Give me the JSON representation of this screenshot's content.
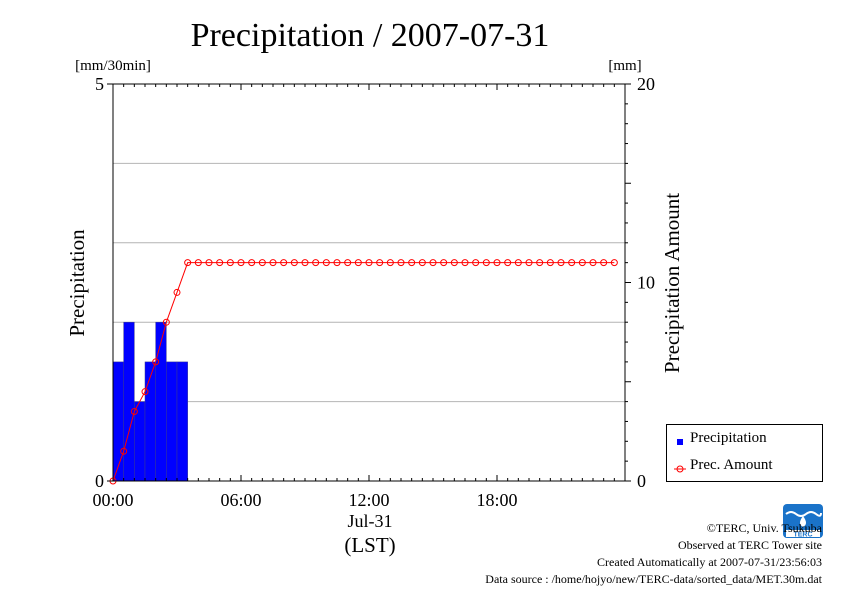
{
  "chart_data": {
    "type": "bar+line",
    "title": "Precipitation / 2007-07-31",
    "left_unit": "[mm/30min]",
    "right_unit": "[mm]",
    "ylabel_left": "Precipitation",
    "ylabel_right": "Precipitation Amount",
    "ylim_left": [
      0,
      5
    ],
    "ylim_right": [
      0,
      20
    ],
    "left_ticks": [
      "0",
      "5"
    ],
    "right_ticks": [
      "0",
      "10",
      "20"
    ],
    "x_ticks": [
      "00:00",
      "06:00",
      "12:00",
      "18:00"
    ],
    "x_date_label": "Jul-31",
    "x_unit_label": "(LST)",
    "grid": true,
    "legend_position": "lower-right-outside",
    "series": [
      {
        "name": "Precipitation",
        "kind": "bar",
        "color": "#0000ff",
        "start_time": "00:00",
        "interval_min": 30,
        "values": [
          1.5,
          2.0,
          1.0,
          1.5,
          2.0,
          1.5,
          1.5
        ]
      },
      {
        "name": "Prec. Amount",
        "kind": "line",
        "color": "#ff0000",
        "times": [
          "00:00",
          "00:30",
          "01:00",
          "01:30",
          "02:00",
          "02:30",
          "03:00",
          "03:30",
          "04:00",
          "04:30",
          "05:00",
          "05:30",
          "06:00",
          "06:30",
          "07:00",
          "07:30",
          "08:00",
          "08:30",
          "09:00",
          "09:30",
          "10:00",
          "10:30",
          "11:00",
          "11:30",
          "12:00",
          "12:30",
          "13:00",
          "13:30",
          "14:00",
          "14:30",
          "15:00",
          "15:30",
          "16:00",
          "16:30",
          "17:00",
          "17:30",
          "18:00",
          "18:30",
          "19:00",
          "19:30",
          "20:00",
          "20:30",
          "21:00",
          "21:30",
          "22:00",
          "22:30",
          "23:00",
          "23:30"
        ],
        "values": [
          0,
          1.5,
          3.5,
          4.5,
          6.0,
          8.0,
          9.5,
          11.0,
          11.0,
          11.0,
          11.0,
          11.0,
          11.0,
          11.0,
          11.0,
          11.0,
          11.0,
          11.0,
          11.0,
          11.0,
          11.0,
          11.0,
          11.0,
          11.0,
          11.0,
          11.0,
          11.0,
          11.0,
          11.0,
          11.0,
          11.0,
          11.0,
          11.0,
          11.0,
          11.0,
          11.0,
          11.0,
          11.0,
          11.0,
          11.0,
          11.0,
          11.0,
          11.0,
          11.0,
          11.0,
          11.0,
          11.0,
          11.0
        ]
      }
    ]
  },
  "footer": {
    "copyright": "©TERC, Univ. Tsukuba",
    "observed": "Observed at TERC Tower site",
    "created": "Created Automatically at 2007-07-31/23:56:03",
    "source": "Data source : /home/hojyo/new/TERC-data/sorted_data/MET.30m.dat"
  },
  "logo": {
    "text": "TERC",
    "color": "#1a73c9"
  }
}
